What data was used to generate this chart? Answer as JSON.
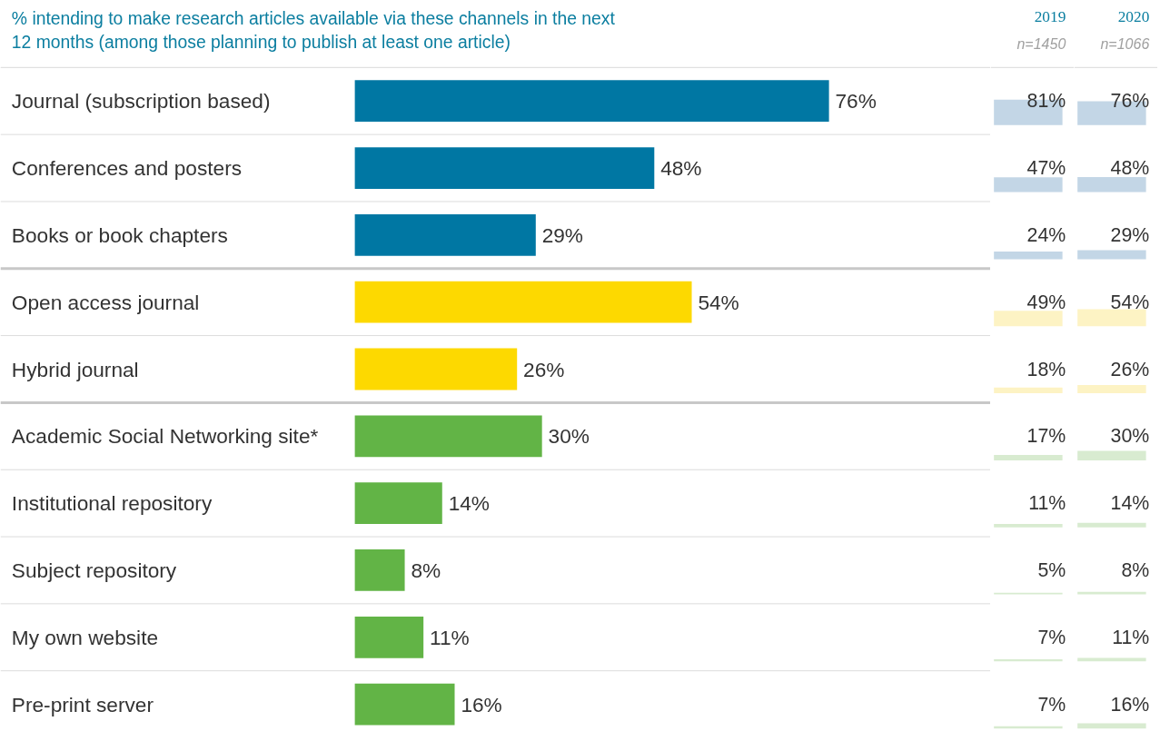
{
  "chart_data": [
    {
      "type": "bar",
      "orientation": "horizontal",
      "title": "% intending to make research articles available via these channels in the next\n12 months (among those planning to publish at least one article)",
      "categories": [
        "Journal (subscription based)",
        "Conferences and posters",
        "Books or book chapters",
        "Open access journal",
        "Hybrid journal",
        "Academic Social Networking site*",
        "Institutional repository",
        "Subject repository",
        "My own website",
        "Pre-print server"
      ],
      "values": [
        76,
        48,
        29,
        54,
        26,
        30,
        14,
        8,
        11,
        16
      ],
      "colors": [
        "#0077a3",
        "#0077a3",
        "#0077a3",
        "#fdd900",
        "#fdd900",
        "#62b446",
        "#62b446",
        "#62b446",
        "#62b446",
        "#62b446"
      ],
      "value_labels": [
        "76%",
        "48%",
        "29%",
        "54%",
        "26%",
        "30%",
        "14%",
        "8%",
        "11%",
        "16%"
      ]
    },
    {
      "type": "other",
      "title": "2019",
      "subtitle": "n=1450",
      "categories": [
        null,
        null,
        null,
        null,
        null,
        null,
        null,
        null,
        null,
        null
      ],
      "values": [
        81,
        47,
        24,
        49,
        18,
        17,
        11,
        5,
        7,
        7
      ],
      "colors": [
        "#c3d6e6",
        "#c3d6e6",
        "#c3d6e6",
        "#fdf3c4",
        "#fdf3c4",
        "#d8ebd0",
        "#d8ebd0",
        "#d8ebd0",
        "#d8ebd0",
        "#d8ebd0"
      ],
      "value_labels": [
        "81%",
        "47%",
        "24%",
        "49%",
        "18%",
        "17%",
        "11%",
        "5%",
        "7%",
        "7%"
      ]
    },
    {
      "type": "other",
      "title": "2020",
      "subtitle": "n=1066",
      "categories": [
        null,
        null,
        null,
        null,
        null,
        null,
        null,
        null,
        null,
        null
      ],
      "values": [
        76,
        48,
        29,
        54,
        26,
        30,
        14,
        8,
        11,
        16
      ],
      "colors": [
        "#c3d6e6",
        "#c3d6e6",
        "#c3d6e6",
        "#fdf3c4",
        "#fdf3c4",
        "#d8ebd0",
        "#d8ebd0",
        "#d8ebd0",
        "#d8ebd0",
        "#d8ebd0"
      ],
      "value_labels": [
        "76%",
        "48%",
        "29%",
        "54%",
        "26%",
        "30%",
        "14%",
        "8%",
        "11%",
        "16%"
      ]
    }
  ]
}
